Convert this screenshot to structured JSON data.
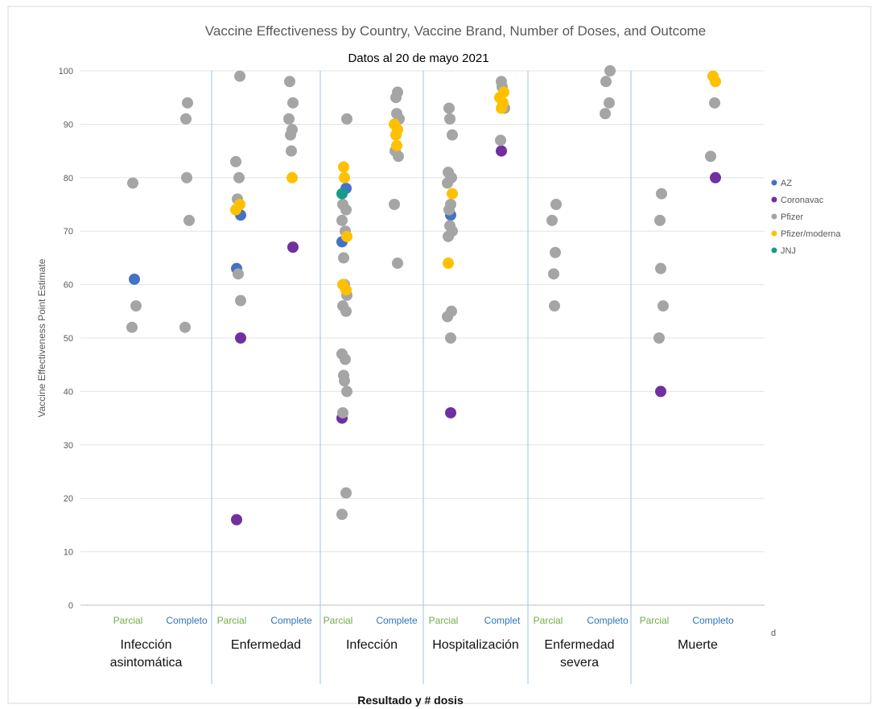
{
  "chart_data": {
    "type": "scatter",
    "title": "Vaccine Effectiveness by Country, Vaccine Brand, Number of Doses, and Outcome",
    "subtitle": "Datos al 20 de mayo 2021",
    "ylabel": "Vaccine Effectiveness Point Estimate",
    "xlabel": "Resultado y # dosis",
    "ylim": [
      0,
      100
    ],
    "yticks": [
      0,
      10,
      20,
      30,
      40,
      50,
      60,
      70,
      80,
      90,
      100
    ],
    "grid": "horizontal",
    "legend_position": "right",
    "stray_text": "d",
    "groups": [
      {
        "label_lines": [
          "Infección",
          "asintomática"
        ],
        "doses": [
          "Parcial",
          "Completo"
        ]
      },
      {
        "label_lines": [
          "Enfermedad"
        ],
        "doses": [
          "Parcial",
          "Complete"
        ]
      },
      {
        "label_lines": [
          "Infección"
        ],
        "doses": [
          "Parcial",
          "Complete"
        ]
      },
      {
        "label_lines": [
          "Hospitalización"
        ],
        "doses": [
          "Parcial",
          "Complet"
        ]
      },
      {
        "label_lines": [
          "Enfermedad",
          "severa"
        ],
        "doses": [
          "Parcial",
          "Completo"
        ]
      },
      {
        "label_lines": [
          "Muerte"
        ],
        "doses": [
          "Parcial",
          "Completo"
        ]
      }
    ],
    "dose_colors": {
      "Parcial": "#70ad47",
      "Complete": "#2e75b6"
    },
    "series": [
      {
        "name": "AZ",
        "color": "#4472c4",
        "points": [
          [
            0,
            0,
            61
          ],
          [
            1,
            0,
            73
          ],
          [
            1,
            0,
            63
          ],
          [
            2,
            0,
            78
          ],
          [
            2,
            0,
            68
          ],
          [
            3,
            0,
            73
          ]
        ]
      },
      {
        "name": "Coronavac",
        "color": "#7030a0",
        "points": [
          [
            1,
            0,
            50
          ],
          [
            1,
            0,
            16
          ],
          [
            1,
            1,
            67
          ],
          [
            2,
            0,
            35
          ],
          [
            3,
            0,
            36
          ],
          [
            3,
            1,
            85
          ],
          [
            5,
            0,
            40
          ],
          [
            5,
            1,
            80
          ]
        ]
      },
      {
        "name": "Pfizer",
        "color": "#a5a5a5",
        "points": [
          [
            0,
            0,
            79
          ],
          [
            0,
            0,
            56
          ],
          [
            0,
            0,
            52
          ],
          [
            0,
            1,
            94
          ],
          [
            0,
            1,
            91
          ],
          [
            0,
            1,
            80
          ],
          [
            0,
            1,
            72
          ],
          [
            0,
            1,
            52
          ],
          [
            1,
            0,
            99
          ],
          [
            1,
            0,
            83
          ],
          [
            1,
            0,
            80
          ],
          [
            1,
            0,
            76
          ],
          [
            1,
            0,
            62
          ],
          [
            1,
            0,
            57
          ],
          [
            1,
            1,
            98
          ],
          [
            1,
            1,
            94
          ],
          [
            1,
            1,
            91
          ],
          [
            1,
            1,
            89
          ],
          [
            1,
            1,
            88
          ],
          [
            1,
            1,
            85
          ],
          [
            2,
            0,
            91
          ],
          [
            2,
            0,
            75
          ],
          [
            2,
            0,
            74
          ],
          [
            2,
            0,
            72
          ],
          [
            2,
            0,
            70
          ],
          [
            2,
            0,
            65
          ],
          [
            2,
            0,
            60
          ],
          [
            2,
            0,
            58
          ],
          [
            2,
            0,
            56
          ],
          [
            2,
            0,
            55
          ],
          [
            2,
            0,
            47
          ],
          [
            2,
            0,
            46
          ],
          [
            2,
            0,
            43
          ],
          [
            2,
            0,
            42
          ],
          [
            2,
            0,
            40
          ],
          [
            2,
            0,
            36
          ],
          [
            2,
            0,
            21
          ],
          [
            2,
            0,
            17
          ],
          [
            2,
            1,
            96
          ],
          [
            2,
            1,
            95
          ],
          [
            2,
            1,
            92
          ],
          [
            2,
            1,
            91
          ],
          [
            2,
            1,
            85
          ],
          [
            2,
            1,
            84
          ],
          [
            2,
            1,
            75
          ],
          [
            2,
            1,
            64
          ],
          [
            3,
            0,
            93
          ],
          [
            3,
            0,
            91
          ],
          [
            3,
            0,
            88
          ],
          [
            3,
            0,
            81
          ],
          [
            3,
            0,
            80
          ],
          [
            3,
            0,
            79
          ],
          [
            3,
            0,
            75
          ],
          [
            3,
            0,
            74
          ],
          [
            3,
            0,
            71
          ],
          [
            3,
            0,
            70
          ],
          [
            3,
            0,
            69
          ],
          [
            3,
            0,
            55
          ],
          [
            3,
            0,
            54
          ],
          [
            3,
            0,
            50
          ],
          [
            3,
            1,
            98
          ],
          [
            3,
            1,
            97
          ],
          [
            3,
            1,
            93
          ],
          [
            3,
            1,
            87
          ],
          [
            4,
            0,
            75
          ],
          [
            4,
            0,
            72
          ],
          [
            4,
            0,
            66
          ],
          [
            4,
            0,
            62
          ],
          [
            4,
            0,
            56
          ],
          [
            4,
            1,
            100
          ],
          [
            4,
            1,
            98
          ],
          [
            4,
            1,
            94
          ],
          [
            4,
            1,
            92
          ],
          [
            5,
            0,
            77
          ],
          [
            5,
            0,
            72
          ],
          [
            5,
            0,
            63
          ],
          [
            5,
            0,
            56
          ],
          [
            5,
            0,
            50
          ],
          [
            5,
            1,
            94
          ],
          [
            5,
            1,
            84
          ]
        ]
      },
      {
        "name": "Pfizer/moderna",
        "color": "#ffc000",
        "points": [
          [
            1,
            0,
            75
          ],
          [
            1,
            0,
            74
          ],
          [
            1,
            1,
            80
          ],
          [
            2,
            0,
            82
          ],
          [
            2,
            0,
            80
          ],
          [
            2,
            0,
            69
          ],
          [
            2,
            0,
            60
          ],
          [
            2,
            0,
            59
          ],
          [
            2,
            1,
            90
          ],
          [
            2,
            1,
            89
          ],
          [
            2,
            1,
            88
          ],
          [
            2,
            1,
            86
          ],
          [
            3,
            0,
            77
          ],
          [
            3,
            0,
            64
          ],
          [
            3,
            1,
            96
          ],
          [
            3,
            1,
            95
          ],
          [
            3,
            1,
            94
          ],
          [
            3,
            1,
            93
          ],
          [
            5,
            1,
            99
          ],
          [
            5,
            1,
            98
          ]
        ]
      },
      {
        "name": "JNJ",
        "color": "#1a9a8a",
        "points": [
          [
            2,
            0,
            77
          ]
        ]
      }
    ]
  }
}
